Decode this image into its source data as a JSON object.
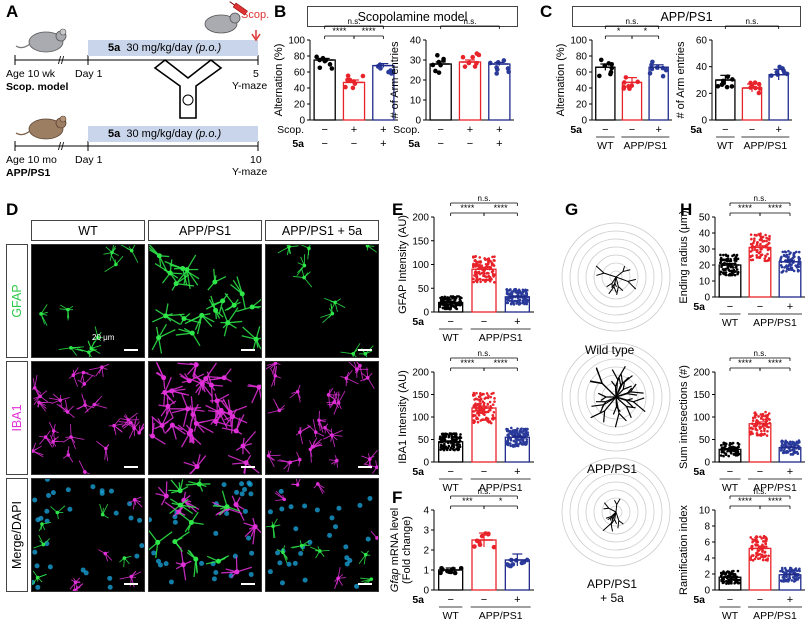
{
  "panels": {
    "A": "A",
    "B": "B",
    "C": "C",
    "D": "D",
    "E": "E",
    "F": "F",
    "G": "G",
    "H": "H"
  },
  "panelA": {
    "age_top": "Age 10 wk",
    "age_bottom": "Age 10 mo",
    "day1": "Day 1",
    "model_top": "Scop. model",
    "model_bottom": "APP/PS1",
    "treat_drug": "5a",
    "treat_dose": "30 mg/kg/day",
    "treat_route": "(p.o.)",
    "end_top": "5",
    "end_bottom": "10",
    "ymaze": "Y-maze",
    "scop_label": "Scop."
  },
  "panelB": {
    "title": "Scopolamine model",
    "cond1_label": "Scop.",
    "cond2_label": "5a"
  },
  "panelC": {
    "title": "APP/PS1",
    "cond_label": "5a",
    "wt": "WT",
    "app": "APP/PS1"
  },
  "panelD": {
    "cols": [
      "WT",
      "APP/PS1",
      "APP/PS1 + 5a"
    ],
    "rows": [
      "GFAP",
      "IBA1",
      "Merge/DAPI"
    ],
    "scale": "20 μm"
  },
  "panelG": {
    "labels": [
      "Wild type",
      "APP/PS1",
      "APP/PS1\n+ 5a"
    ]
  },
  "colors": {
    "wt": "#000000",
    "disease": "#e8232a",
    "treat": "#1f2a8a",
    "ctrl_dot": "#000000",
    "treat_dot": "#2a3a9a",
    "gfap": "#2ee84a",
    "iba1": "#e030d8",
    "dapi": "#1aa8e0",
    "timeline": "#c9d5ea"
  },
  "sig": {
    "ns": "n.s.",
    "s1": "*",
    "s3": "***",
    "s4": "****"
  },
  "chart_data": [
    {
      "id": "B1",
      "type": "bar",
      "ylabel": "Alternation (%)",
      "ylim": [
        0,
        100
      ],
      "yticks": [
        0,
        20,
        40,
        60,
        80,
        100
      ],
      "cond1": [
        "−",
        "+",
        "+"
      ],
      "cond2": [
        "−",
        "−",
        "+"
      ],
      "values": [
        75,
        47,
        68
      ],
      "errors": [
        2,
        3,
        2.5
      ]
    },
    {
      "id": "B2",
      "type": "bar",
      "ylabel": "# of Arm entries",
      "ylim": [
        0,
        40
      ],
      "yticks": [
        0,
        10,
        20,
        30,
        40
      ],
      "cond1": [
        "−",
        "+",
        "+"
      ],
      "cond2": [
        "−",
        "−",
        "+"
      ],
      "values": [
        28,
        29,
        28
      ],
      "errors": [
        1,
        1,
        0.8
      ]
    },
    {
      "id": "C1",
      "type": "bar",
      "ylabel": "Alternation (%)",
      "ylim": [
        0,
        100
      ],
      "yticks": [
        0,
        20,
        40,
        60,
        80,
        100
      ],
      "cond": [
        "−",
        "−",
        "+"
      ],
      "groups": [
        "WT",
        "APP/PS1"
      ],
      "values": [
        66,
        47,
        66
      ],
      "errors": [
        4,
        6,
        3
      ]
    },
    {
      "id": "C2",
      "type": "bar",
      "ylabel": "# of Arm entries",
      "ylim": [
        0,
        60
      ],
      "yticks": [
        0,
        20,
        40,
        60
      ],
      "cond": [
        "−",
        "−",
        "+"
      ],
      "groups": [
        "WT",
        "APP/PS1"
      ],
      "values": [
        30,
        24,
        34
      ],
      "errors": [
        3.5,
        3,
        4
      ]
    },
    {
      "id": "E1",
      "type": "bar",
      "ylabel": "GFAP Intensity (AU)",
      "ylim": [
        0,
        200
      ],
      "yticks": [
        0,
        50,
        100,
        150,
        200
      ],
      "cond": [
        "−",
        "−",
        "+"
      ],
      "groups": [
        "WT",
        "APP/PS1"
      ],
      "values": [
        20,
        90,
        32
      ],
      "errors": [
        1.5,
        4,
        2
      ]
    },
    {
      "id": "E2",
      "type": "bar",
      "ylabel": "IBA1 Intensity (AU)",
      "ylim": [
        0,
        200
      ],
      "yticks": [
        0,
        50,
        100,
        150,
        200
      ],
      "cond": [
        "−",
        "−",
        "+"
      ],
      "groups": [
        "WT",
        "APP/PS1"
      ],
      "values": [
        45,
        120,
        55
      ],
      "errors": [
        2,
        4,
        3
      ]
    },
    {
      "id": "F1",
      "type": "bar",
      "ylabel": "Gfap mRNA level (Fold change)",
      "ylim": [
        0,
        4
      ],
      "yticks": [
        0,
        1,
        2,
        3,
        4
      ],
      "cond": [
        "−",
        "−",
        "+"
      ],
      "groups": [
        "WT",
        "APP/PS1"
      ],
      "values": [
        1.0,
        2.5,
        1.5
      ],
      "errors": [
        0.1,
        0.35,
        0.3
      ]
    },
    {
      "id": "H1",
      "type": "bar",
      "ylabel": "Ending radius (μm)",
      "ylim": [
        0,
        50
      ],
      "yticks": [
        0,
        10,
        20,
        30,
        40,
        50
      ],
      "cond": [
        "−",
        "−",
        "+"
      ],
      "groups": [
        "WT",
        "APP/PS1"
      ],
      "values": [
        20,
        31,
        22
      ],
      "errors": [
        1,
        1,
        1
      ]
    },
    {
      "id": "H2",
      "type": "bar",
      "ylabel": "Sum intersections (#)",
      "ylim": [
        0,
        200
      ],
      "yticks": [
        0,
        50,
        100,
        150,
        200
      ],
      "cond": [
        "−",
        "−",
        "+"
      ],
      "groups": [
        "WT",
        "APP/PS1"
      ],
      "values": [
        28,
        85,
        32
      ],
      "errors": [
        2,
        4,
        2
      ]
    },
    {
      "id": "H3",
      "type": "bar",
      "ylabel": "Ramification index",
      "ylim": [
        0,
        10
      ],
      "yticks": [
        0,
        2,
        4,
        6,
        8,
        10
      ],
      "cond": [
        "−",
        "−",
        "+"
      ],
      "groups": [
        "WT",
        "APP/PS1"
      ],
      "values": [
        1.6,
        5.2,
        1.9
      ],
      "errors": [
        0.1,
        0.3,
        0.1
      ]
    }
  ]
}
